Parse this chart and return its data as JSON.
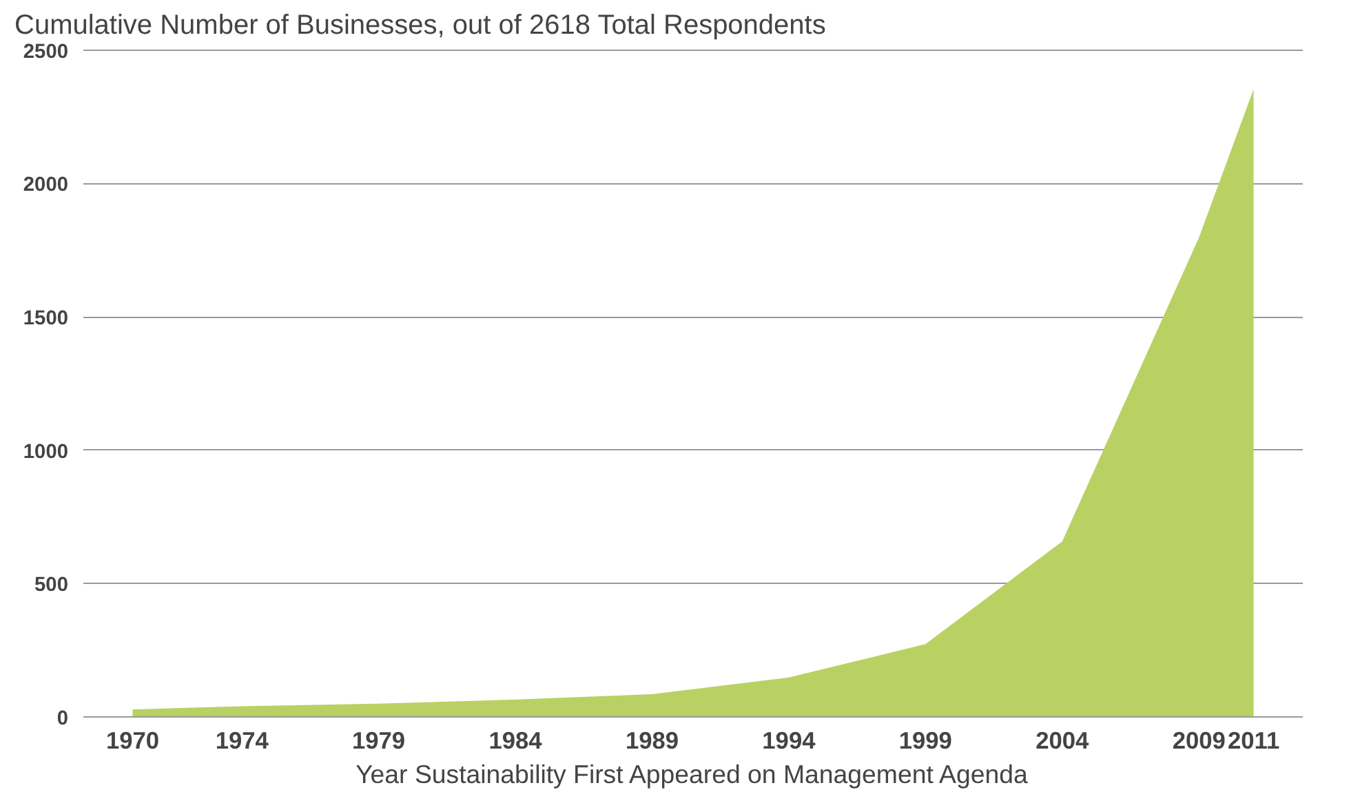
{
  "chart_data": {
    "type": "area",
    "title": "Cumulative Number of Businesses, out of 2618 Total Respondents",
    "xlabel": "Year Sustainability First Appeared on Management Agenda",
    "x": [
      1970,
      1974,
      1979,
      1984,
      1989,
      1994,
      1999,
      2004,
      2009,
      2011
    ],
    "series": [
      {
        "color": "#b9d162",
        "values": [
          28,
          40,
          50,
          65,
          85,
          148,
          273,
          658,
          1797,
          2354
        ]
      }
    ],
    "xlim": [
      1968.2,
      2012.8
    ],
    "xticks": [
      1970,
      1974,
      1979,
      1984,
      1989,
      1994,
      1999,
      2004,
      2009,
      2011
    ],
    "ylim": [
      0,
      2510
    ],
    "yticks": [
      0,
      500,
      1000,
      1500,
      2000,
      2500
    ],
    "grid": "y"
  }
}
